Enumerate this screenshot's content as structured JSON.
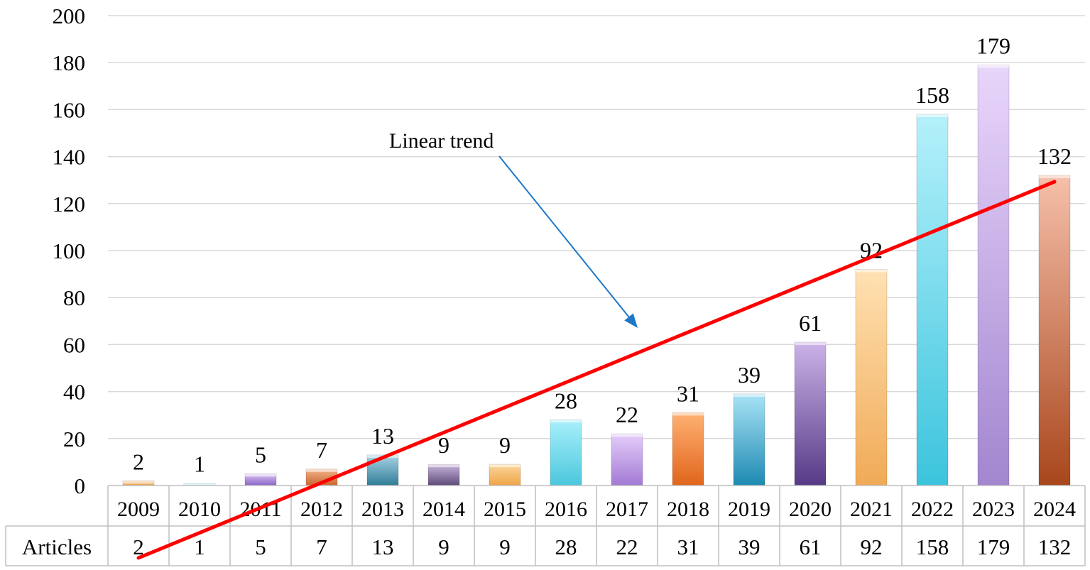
{
  "chart_data": {
    "type": "bar",
    "categories": [
      "2009",
      "2010",
      "2011",
      "2012",
      "2013",
      "2014",
      "2015",
      "2016",
      "2017",
      "2018",
      "2019",
      "2020",
      "2021",
      "2022",
      "2023",
      "2024"
    ],
    "series": [
      {
        "name": "Articles",
        "values": [
          2,
          1,
          5,
          7,
          13,
          9,
          9,
          28,
          22,
          31,
          39,
          61,
          92,
          158,
          179,
          132
        ],
        "data_labels": [
          "2",
          "1",
          "5",
          "7",
          "13",
          "9",
          "9",
          "28",
          "22",
          "31",
          "39",
          "61",
          "92",
          "158",
          "179",
          "132"
        ]
      }
    ],
    "yticks": [
      "0",
      "20",
      "40",
      "60",
      "80",
      "100",
      "120",
      "140",
      "160",
      "180",
      "200"
    ],
    "ylim": [
      0,
      200
    ],
    "grid": true,
    "trendline": {
      "type": "linear",
      "color": "#ff0000"
    },
    "annotation": {
      "text": "Linear trend",
      "arrow_color": "#1f77c8"
    },
    "data_table": {
      "row_label": "Articles"
    },
    "bar_colors": [
      [
        "#f7c78a",
        "#e8a04c"
      ],
      [
        "#cdeef7",
        "#a6dbe8"
      ],
      [
        "#d8c2f2",
        "#8c64c8"
      ],
      [
        "#f2b58e",
        "#c9652e"
      ],
      [
        "#a9d4e6",
        "#2f7c96"
      ],
      [
        "#c7b3d9",
        "#5e4a78"
      ],
      [
        "#fcd59a",
        "#eda548"
      ],
      [
        "#a8f0fb",
        "#4cc7dd"
      ],
      [
        "#e5cdfa",
        "#a27ad4"
      ],
      [
        "#ffb173",
        "#e0651c"
      ],
      [
        "#a9e3f6",
        "#1e8ab2"
      ],
      [
        "#cbb3e8",
        "#563a86"
      ],
      [
        "#ffe1b2",
        "#f0aa57"
      ],
      [
        "#b5f1fb",
        "#3cc4dd"
      ],
      [
        "#e9d6fb",
        "#a286cf"
      ],
      [
        "#f6c0aa",
        "#a8461c"
      ]
    ]
  }
}
